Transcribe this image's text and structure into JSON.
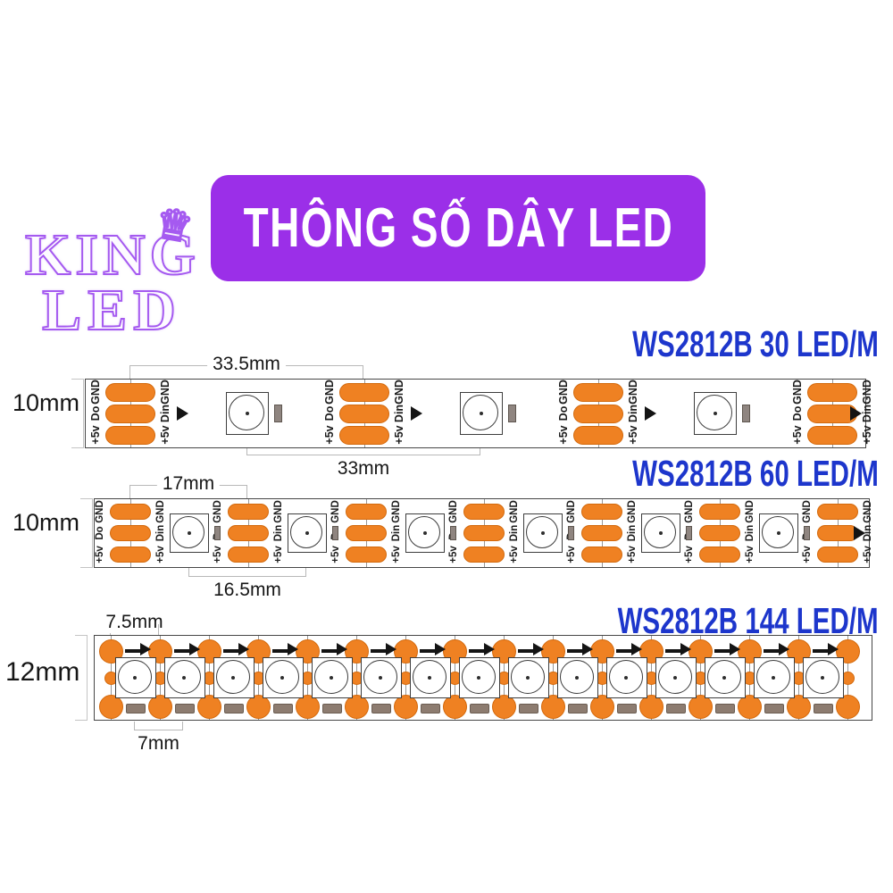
{
  "banner": {
    "title": "THÔNG SỐ DÂY LED"
  },
  "logo": {
    "line1": "KING",
    "line2": "LED",
    "crown_icon": "crown"
  },
  "colors": {
    "banner_purple": "#9b2fe8",
    "logo_purple": "#a55af0",
    "label_blue": "#1d36cc",
    "pad_orange": "#ef8122",
    "pad_border": "#d3690c",
    "strip_border": "#474747",
    "dim_line": "#b8b8b8",
    "chip_gray": "#8f8580",
    "bottom_rect": "#8d7c70"
  },
  "strips": [
    {
      "label": "WS2812B 30 LED/M",
      "width_label": "10mm",
      "top_dim": "33.5mm",
      "bottom_dim": "33mm",
      "pad_count": 4,
      "led_count": 3,
      "pad_labels_left": [
        "GND",
        "Do",
        "+5v"
      ],
      "pad_labels_right": [
        "GND",
        "Din",
        "+5v"
      ]
    },
    {
      "label": "WS2812B 60 LED/M",
      "width_label": "10mm",
      "top_dim": "17mm",
      "bottom_dim": "16.5mm",
      "pad_count": 7,
      "led_count": 6,
      "pad_labels_left": [
        "GND",
        "Do",
        "+5v"
      ],
      "pad_labels_right": [
        "GND",
        "Din",
        "+5v"
      ]
    },
    {
      "label": "WS2812B 144 LED/M",
      "width_label": "12mm",
      "top_dim": "7.5mm",
      "bottom_dim": "7mm",
      "dot_column_count": 16,
      "led_count": 15
    }
  ]
}
